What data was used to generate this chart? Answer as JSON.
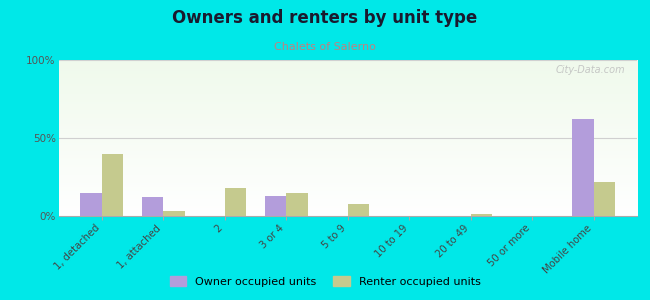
{
  "title": "Owners and renters by unit type",
  "subtitle": "Chalets of Salerno",
  "categories": [
    "1, detached",
    "1, attached",
    "2",
    "3 or 4",
    "5 to 9",
    "10 to 19",
    "20 to 49",
    "50 or more",
    "Mobile home"
  ],
  "owner_values": [
    15,
    12,
    0,
    13,
    0,
    0,
    0,
    0,
    62
  ],
  "renter_values": [
    40,
    3,
    18,
    15,
    8,
    0,
    1,
    0,
    22
  ],
  "owner_color": "#b39ddb",
  "renter_color": "#c5ca8e",
  "bg_outer": "#00e8e8",
  "ylim": [
    0,
    100
  ],
  "yticks": [
    0,
    50,
    100
  ],
  "ytick_labels": [
    "0%",
    "50%",
    "100%"
  ],
  "bar_width": 0.35,
  "watermark": "City-Data.com",
  "legend_owner": "Owner occupied units",
  "legend_renter": "Renter occupied units",
  "title_color": "#1a1a2e",
  "subtitle_color": "#c08080",
  "grid_color": "#d0d0d0"
}
